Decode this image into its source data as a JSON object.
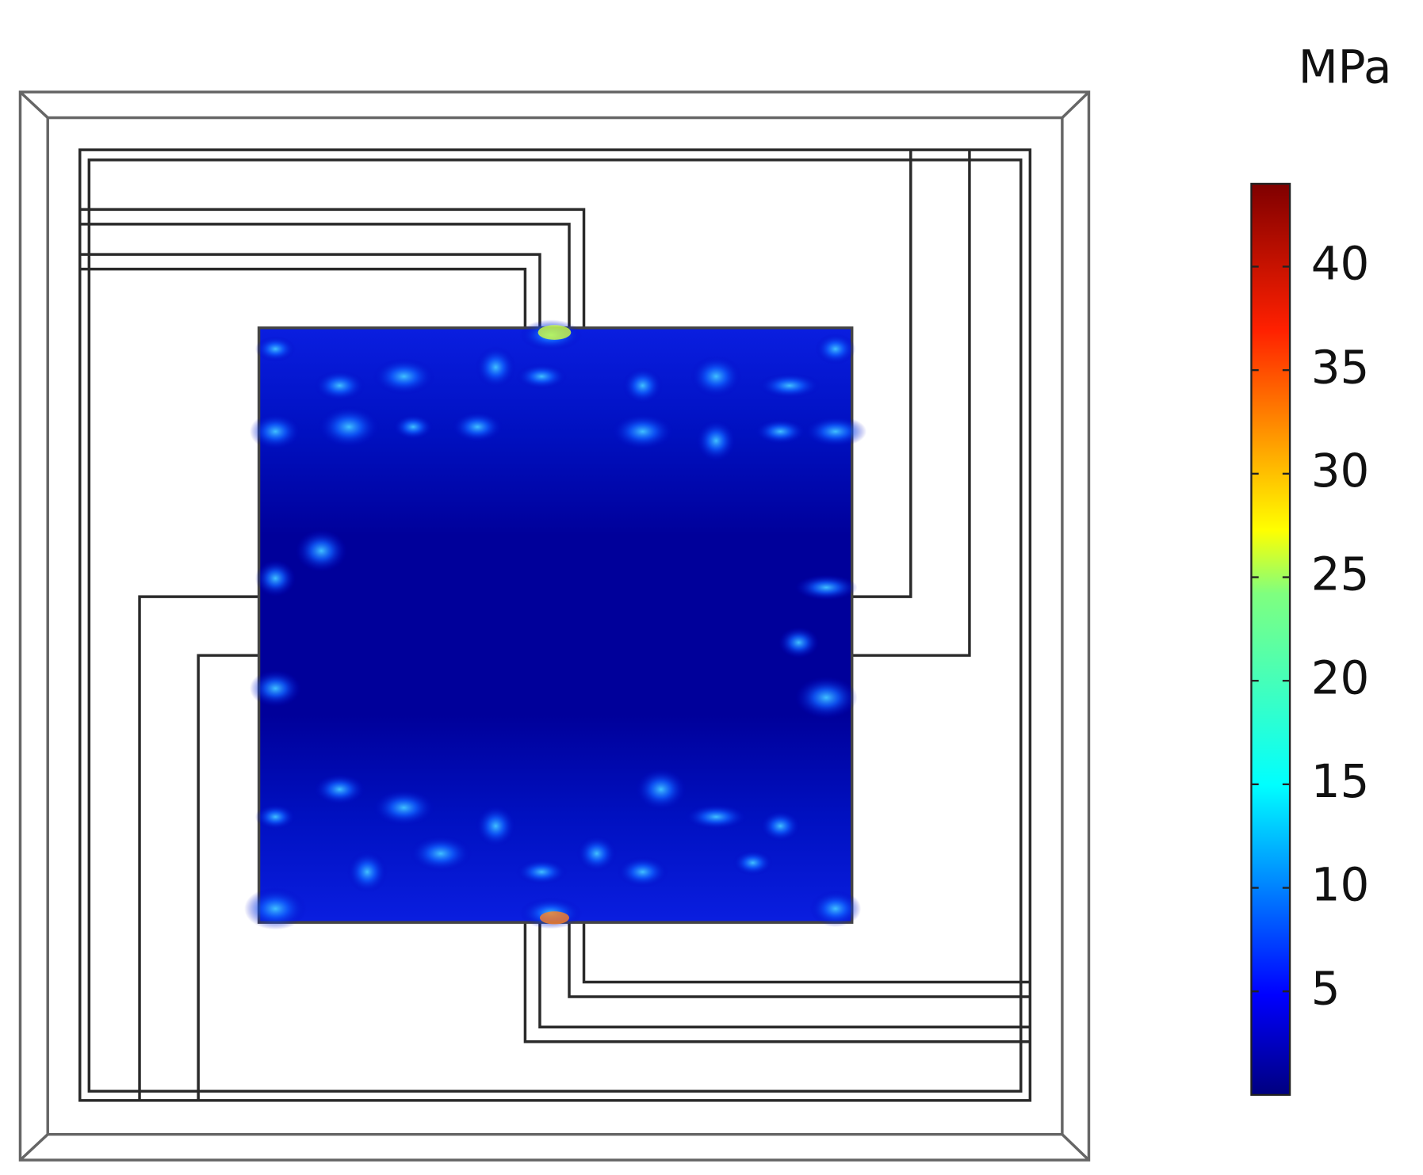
{
  "colorbar": {
    "unit": "MPa",
    "range": [
      0,
      44
    ],
    "ticks": [
      5,
      10,
      15,
      20,
      25,
      30,
      35,
      40
    ]
  }
}
